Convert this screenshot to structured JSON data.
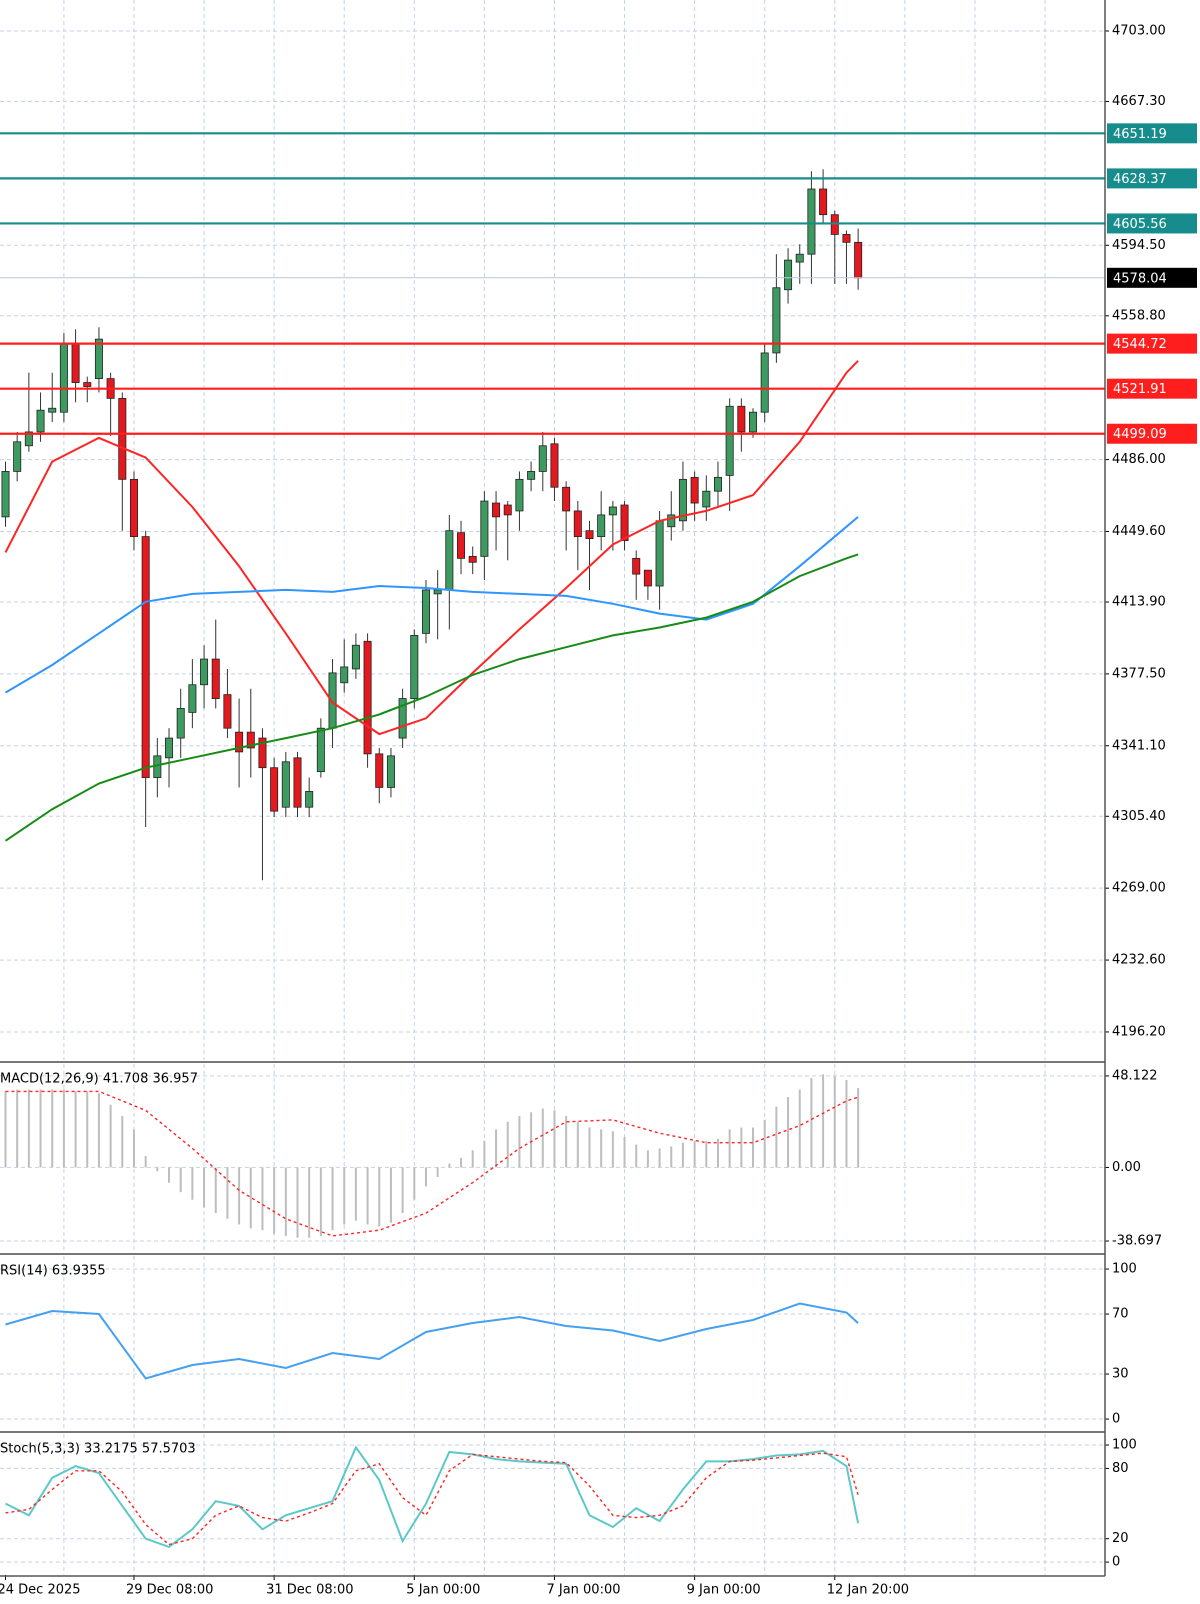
{
  "chart_data": [
    {
      "type": "candlestick",
      "categories": [
        "24 Dec 2025",
        null,
        null,
        null,
        null,
        null,
        null,
        null,
        null,
        null,
        null,
        "29 Dec 08:00",
        null,
        null,
        null,
        null,
        null,
        null,
        null,
        null,
        null,
        null,
        null,
        "31 Dec 08:00",
        null,
        null,
        null,
        null,
        null,
        null,
        null,
        null,
        null,
        null,
        null,
        "5 Jan 00:00",
        null,
        null,
        null,
        null,
        null,
        null,
        null,
        null,
        null,
        null,
        null,
        "7 Jan 00:00",
        null,
        null,
        null,
        null,
        null,
        null,
        null,
        null,
        null,
        null,
        null,
        "9 Jan 00:00",
        null,
        null,
        null,
        null,
        null,
        null,
        null,
        null,
        null,
        null,
        null,
        "12 Jan 20:00",
        null,
        null
      ],
      "open": [
        4457,
        4480,
        4493,
        4500,
        4510,
        4510,
        4545,
        4525,
        4527,
        4527,
        4517,
        4476,
        4447,
        4325,
        4335,
        4345,
        4358,
        4372,
        4385,
        4367,
        4348,
        4348,
        4345,
        4330,
        4310,
        4335,
        4310,
        4328,
        4350,
        4373,
        4380,
        4394,
        4337,
        4320,
        4345,
        4365,
        4398,
        4418,
        4420,
        4449,
        4437,
        4437,
        4464,
        4463,
        4460,
        4476,
        4480,
        4494,
        4472,
        4460,
        4450,
        4447,
        4458,
        4463,
        4436,
        4430,
        4422,
        4452,
        4455,
        4477,
        4462,
        4470,
        4478,
        4513,
        4500,
        4510,
        4540,
        4572,
        4586,
        4590,
        4623,
        4610,
        4600,
        4596
      ],
      "high": [
        4485,
        4500,
        4530,
        4520,
        4530,
        4550,
        4552,
        4528,
        4553,
        4530,
        4520,
        4480,
        4450,
        4345,
        4350,
        4370,
        4385,
        4392,
        4405,
        4380,
        4365,
        4370,
        4350,
        4335,
        4338,
        4338,
        4325,
        4355,
        4385,
        4395,
        4398,
        4398,
        4340,
        4340,
        4370,
        4400,
        4425,
        4430,
        4458,
        4455,
        4442,
        4470,
        4470,
        4465,
        4480,
        4485,
        4500,
        4497,
        4475,
        4465,
        4455,
        4470,
        4465,
        4465,
        4440,
        4430,
        4460,
        4470,
        4485,
        4480,
        4478,
        4485,
        4517,
        4517,
        4512,
        4545,
        4590,
        4593,
        4595,
        4632,
        4633,
        4612,
        4602,
        4603
      ],
      "low": [
        4452,
        4475,
        4490,
        4495,
        4505,
        4505,
        4515,
        4515,
        4520,
        4498,
        4450,
        4440,
        4300,
        4315,
        4320,
        4335,
        4350,
        4360,
        4360,
        4345,
        4320,
        4325,
        4273,
        4305,
        4305,
        4305,
        4305,
        4325,
        4340,
        4368,
        4375,
        4330,
        4312,
        4315,
        4340,
        4360,
        4393,
        4395,
        4400,
        4428,
        4428,
        4425,
        4440,
        4435,
        4450,
        4470,
        4470,
        4465,
        4440,
        4430,
        4420,
        4440,
        4440,
        4440,
        4415,
        4415,
        4410,
        4445,
        4450,
        4455,
        4455,
        4462,
        4460,
        4490,
        4497,
        4505,
        4535,
        4565,
        4575,
        4575,
        4605,
        4575,
        4575,
        4572
      ],
      "close": [
        4480,
        4495,
        4500,
        4511,
        4512,
        4545,
        4525,
        4523,
        4547,
        4517,
        4476,
        4447,
        4325,
        4336,
        4345,
        4360,
        4372,
        4385,
        4365,
        4350,
        4338,
        4340,
        4330,
        4308,
        4333,
        4310,
        4318,
        4350,
        4378,
        4381,
        4392,
        4337,
        4320,
        4336,
        4365,
        4397,
        4420,
        4420,
        4450,
        4436,
        4434,
        4465,
        4457,
        4458,
        4476,
        4480,
        4493,
        4472,
        4460,
        4447,
        4446,
        4458,
        4462,
        4445,
        4428,
        4422,
        4455,
        4458,
        4476,
        4464,
        4470,
        4477,
        4513,
        4500,
        4510,
        4540,
        4573,
        4587,
        4590,
        4623,
        4610,
        4600,
        4596,
        4578.04
      ],
      "up_color": "#3d9a60",
      "down_color": "#e3191f",
      "ylim": [
        4182,
        4718.7
      ],
      "yticks": [
        {
          "value": 4703,
          "label": "4703.00"
        },
        {
          "value": 4667.3,
          "label": "4667.30"
        },
        {
          "value": 4594.5,
          "label": "4594.50"
        },
        {
          "value": 4558.8,
          "label": "4558.80"
        },
        {
          "value": 4486,
          "label": "4486.00"
        },
        {
          "value": 4449.6,
          "label": "4449.60"
        },
        {
          "value": 4413.9,
          "label": "4413.90"
        },
        {
          "value": 4377.5,
          "label": "4377.50"
        },
        {
          "value": 4341.1,
          "label": "4341.10"
        },
        {
          "value": 4305.4,
          "label": "4305.40"
        },
        {
          "value": 4269,
          "label": "4269.00"
        },
        {
          "value": 4232.6,
          "label": "4232.60"
        },
        {
          "value": 4196.2,
          "label": "4196.20"
        }
      ],
      "grid": true,
      "series": [
        {
          "color": "#ff2424",
          "x": [
            0,
            4,
            8,
            12,
            16,
            20,
            24,
            28,
            32,
            36,
            40,
            44,
            48,
            52,
            56,
            60,
            64,
            68,
            72,
            73
          ],
          "values": [
            4439,
            4485,
            4497,
            4487,
            4462,
            4432,
            4398,
            4363,
            4347,
            4355,
            4378,
            4400,
            4421,
            4443,
            4455,
            4460,
            4468,
            4495,
            4530,
            4536
          ]
        },
        {
          "color": "#2f95ff",
          "x": [
            0,
            4,
            8,
            12,
            16,
            20,
            24,
            28,
            32,
            36,
            40,
            44,
            48,
            52,
            56,
            60,
            64,
            68,
            72,
            73
          ],
          "values": [
            4368,
            4382,
            4398,
            4414,
            4418,
            4419,
            4420,
            4419,
            4422,
            4421,
            4419,
            4418,
            4417,
            4413,
            4408,
            4405,
            4413,
            4432,
            4452,
            4457
          ]
        },
        {
          "color": "#168c16",
          "x": [
            0,
            4,
            8,
            12,
            16,
            20,
            24,
            28,
            32,
            36,
            40,
            44,
            48,
            52,
            56,
            60,
            64,
            68,
            72,
            73
          ],
          "values": [
            4293,
            4309,
            4322,
            4330,
            4335,
            4340,
            4345,
            4350,
            4357,
            4366,
            4377,
            4385,
            4391,
            4397,
            4401,
            4406,
            4414,
            4427,
            4436,
            4438
          ]
        }
      ],
      "levels": [
        {
          "value": 4651.19,
          "color": "#178c8c"
        },
        {
          "value": 4628.37,
          "color": "#178c8c"
        },
        {
          "value": 4605.56,
          "color": "#178c8c"
        },
        {
          "value": 4544.72,
          "color": "#ff1e1e"
        },
        {
          "value": 4521.91,
          "color": "#ff1e1e"
        },
        {
          "value": 4499.09,
          "color": "#ff1e1e"
        }
      ],
      "last_price": 4578.04
    },
    {
      "type": "macd",
      "title": "MACD(12,26,9) 41.708 36.957",
      "values": [
        40,
        41,
        41,
        41,
        41,
        41,
        40,
        40,
        39,
        33,
        27,
        20,
        6,
        -2,
        -8,
        -13,
        -17,
        -21,
        -24,
        -27,
        -30,
        -32,
        -33,
        -35,
        -36,
        -37,
        -37,
        -36,
        -33,
        -30,
        -28,
        -30,
        -31,
        -29,
        -24,
        -17,
        -10,
        -5,
        2,
        5,
        9,
        14,
        20,
        24,
        27,
        29,
        31,
        30,
        27,
        24,
        21,
        20,
        19,
        16,
        12,
        9,
        10,
        11,
        13,
        14,
        14,
        15,
        20,
        21,
        21,
        25,
        32,
        37,
        41,
        47,
        49,
        48,
        46,
        41.708
      ],
      "color": "#bdbdbd",
      "series": [
        {
          "color": "#ff2424",
          "x": [
            0,
            4,
            8,
            12,
            16,
            20,
            24,
            28,
            32,
            36,
            40,
            44,
            48,
            52,
            56,
            60,
            64,
            68,
            72,
            73
          ],
          "values": [
            40,
            40,
            40,
            30,
            10,
            -12,
            -27,
            -36,
            -33,
            -24,
            -8,
            10,
            24,
            25,
            18,
            13,
            13,
            22,
            35,
            36.957
          ]
        }
      ],
      "ylim": [
        -45,
        54.4
      ],
      "yticks": [
        48.122,
        {
          "value": 0,
          "label": "0.00"
        },
        -38.697
      ]
    },
    {
      "type": "line",
      "title": "RSI(14) 63.9355",
      "series": [
        {
          "color": "#45a0f0",
          "x": [
            0,
            4,
            8,
            12,
            16,
            20,
            24,
            28,
            32,
            36,
            40,
            44,
            48,
            52,
            56,
            60,
            64,
            68,
            72,
            73
          ],
          "values": [
            63,
            72,
            70,
            27,
            36,
            40,
            34,
            44,
            40,
            58,
            64,
            68,
            62,
            59,
            52,
            60,
            66,
            77,
            71,
            63.9355
          ]
        }
      ],
      "ylim": [
        -7.3,
        108.7
      ],
      "yticks": [
        100,
        70,
        30,
        0
      ]
    },
    {
      "type": "line",
      "title": "Stoch(5,3,3) 33.2175 57.5703",
      "series": [
        {
          "color": "#5cc8c8",
          "x": [
            0,
            2,
            4,
            6,
            8,
            10,
            12,
            14,
            16,
            18,
            20,
            22,
            24,
            26,
            28,
            30,
            32,
            34,
            36,
            38,
            40,
            42,
            44,
            46,
            48,
            50,
            52,
            54,
            56,
            58,
            60,
            62,
            64,
            66,
            68,
            70,
            72,
            73
          ],
          "values": [
            50,
            40,
            72,
            82,
            76,
            48,
            20,
            13,
            28,
            52,
            48,
            28,
            40,
            46,
            52,
            98,
            70,
            18,
            50,
            94,
            92,
            88,
            86,
            85,
            84,
            40,
            30,
            46,
            35,
            62,
            86,
            86,
            88,
            91,
            92,
            95,
            82,
            33.2175
          ]
        },
        {
          "color": "#ff2424",
          "dash": true,
          "x": [
            0,
            2,
            4,
            6,
            8,
            10,
            12,
            14,
            16,
            18,
            20,
            22,
            24,
            26,
            28,
            30,
            32,
            34,
            36,
            38,
            40,
            42,
            44,
            46,
            48,
            50,
            52,
            54,
            56,
            58,
            60,
            62,
            64,
            66,
            68,
            70,
            72,
            73
          ],
          "values": [
            42,
            45,
            62,
            78,
            78,
            60,
            32,
            15,
            20,
            40,
            48,
            38,
            35,
            42,
            50,
            78,
            84,
            55,
            40,
            78,
            92,
            90,
            88,
            86,
            85,
            65,
            40,
            38,
            40,
            48,
            72,
            86,
            87,
            89,
            91,
            93,
            90,
            57.5703
          ]
        }
      ],
      "ylim": [
        -11,
        109.4
      ],
      "yticks": [
        100,
        80,
        20,
        0
      ]
    }
  ]
}
